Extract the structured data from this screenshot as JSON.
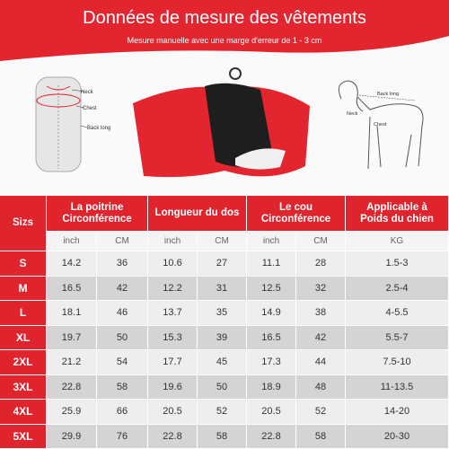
{
  "header": {
    "title": "Données de mesure des vêtements",
    "subtitle": "Mesure manuelle avec une marge d'erreur de 1 - 3 cm"
  },
  "figure_left": {
    "labels": [
      "Neck",
      "Chest",
      "Back long"
    ]
  },
  "figure_right": {
    "labels": [
      "Back long",
      "Neck",
      "Chest"
    ]
  },
  "table": {
    "columns": [
      {
        "lines": [
          "Sizs"
        ]
      },
      {
        "lines": [
          "La poitrine",
          "Circonférence"
        ]
      },
      {
        "lines": [
          "Longueur du dos"
        ]
      },
      {
        "lines": [
          "Le cou",
          "Circonférence"
        ]
      },
      {
        "lines": [
          "Applicable à",
          "Poids du chien"
        ]
      }
    ],
    "units": [
      "inch",
      "CM",
      "inch",
      "CM",
      "inch",
      "CM",
      "KG"
    ],
    "rows": [
      [
        "S",
        "14.2",
        "36",
        "10.6",
        "27",
        "11.1",
        "28",
        "1.5-3"
      ],
      [
        "M",
        "16.5",
        "42",
        "12.2",
        "31",
        "12.5",
        "32",
        "2.5-4"
      ],
      [
        "L",
        "18.1",
        "46",
        "13.7",
        "35",
        "14.9",
        "38",
        "4-5.5"
      ],
      [
        "XL",
        "19.7",
        "50",
        "15.3",
        "39",
        "16.5",
        "42",
        "5.5-7"
      ],
      [
        "2XL",
        "21.2",
        "54",
        "17.7",
        "45",
        "17.3",
        "44",
        "7.5-10"
      ],
      [
        "3XL",
        "22.8",
        "58",
        "19.6",
        "50",
        "18.9",
        "48",
        "11-13.5"
      ],
      [
        "4XL",
        "25.9",
        "66",
        "20.5",
        "52",
        "20.5",
        "52",
        "14-20"
      ],
      [
        "5XL",
        "29.9",
        "76",
        "22.8",
        "58",
        "22.8",
        "58",
        "20-30"
      ]
    ]
  }
}
